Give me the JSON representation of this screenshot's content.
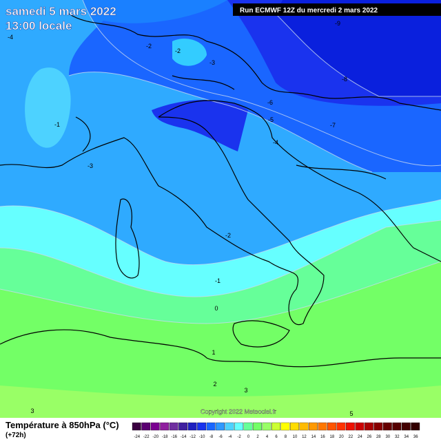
{
  "header": {
    "date": "samedi 5 mars 2022",
    "time": "13:00 locale",
    "run": "Run ECMWF 12Z du mercredi 2 mars 2022"
  },
  "copyright": "Copyright 2022 Meteociel.fr",
  "legend": {
    "title": "Température à 850hPa (°C)",
    "subtitle": "(+72h)",
    "scale": [
      -24,
      -22,
      -20,
      -18,
      -16,
      -14,
      -12,
      -10,
      -8,
      -6,
      -4,
      -2,
      0,
      2,
      4,
      6,
      8,
      10,
      12,
      14,
      16,
      18,
      20,
      22,
      24,
      26,
      28,
      30,
      32,
      34,
      36
    ]
  },
  "contours": [
    -4,
    -2,
    -2,
    -3,
    -9,
    -8,
    -6,
    -5,
    -4,
    -7,
    -1,
    -3,
    -2,
    -1,
    0,
    1,
    2,
    3,
    3,
    5
  ]
}
